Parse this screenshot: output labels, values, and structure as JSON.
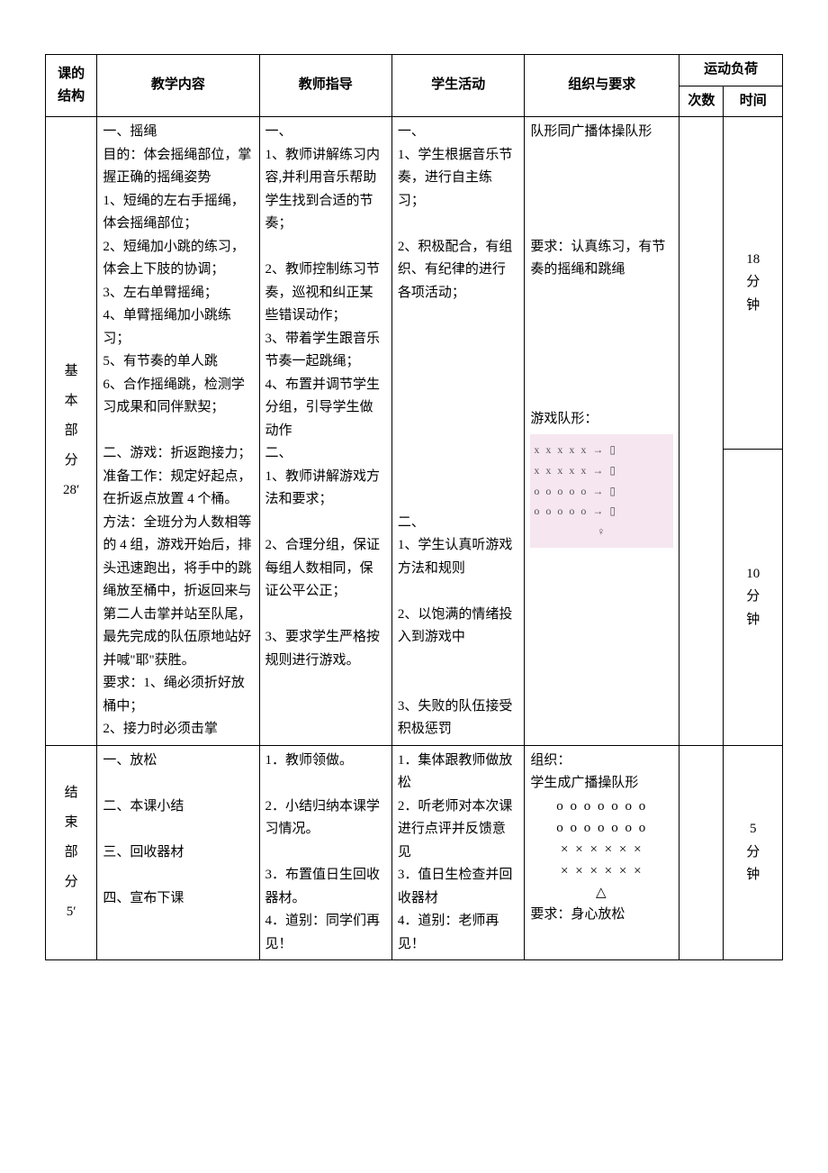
{
  "header": {
    "col1": "课的\n结构",
    "col2": "教学内容",
    "col3": "教师指导",
    "col4": "学生活动",
    "col5": "组织与要求",
    "col6": "运动负荷",
    "col6a": "次数",
    "col6b": "时间"
  },
  "row1": {
    "structure": "基\n本\n部\n分\n28′",
    "content": "一、摇绳\n目的：体会摇绳部位，掌握正确的摇绳姿势\n1、短绳的左右手摇绳，体会摇绳部位；\n2、短绳加小跳的练习，体会上下肢的协调；\n3、左右单臂摇绳；\n4、单臂摇绳加小跳练习；\n5、有节奏的单人跳\n6、合作摇绳跳，检测学习成果和同伴默契；\n\n二、游戏：折返跑接力；\n准备工作：规定好起点，在折返点放置 4 个桶。\n方法：全班分为人数相等的 4 组，游戏开始后，排头迅速跑出，将手中的跳绳放至桶中，折返回来与第二人击掌并站至队尾，最先完成的队伍原地站好并喊\"耶\"获胜。\n要求：1、绳必须折好放桶中；\n2、接力时必须击掌",
    "teacher": "一、\n1、教师讲解练习内容,并利用音乐帮助学生找到合适的节奏；\n\n2、教师控制练习节奏，巡视和纠正某些错误动作；\n3、带着学生跟音乐节奏一起跳绳；\n4、布置并调节学生分组，引导学生做动作\n二、\n1、教师讲解游戏方法和要求；\n\n2、合理分组，保证每组人数相同，保证公平公正；\n\n3、要求学生严格按规则进行游戏。",
    "student": "一、\n1、学生根据音乐节奏，进行自主练习；\n\n2、积极配合，有组织、有纪律的进行各项活动；\n\n\n\n\n\n\n\n\n\n二、\n1、学生认真听游戏方法和规则\n\n2、以饱满的情绪投入到游戏中\n\n\n3、失败的队伍接受积极惩罚",
    "org_top": "队形同广播体操队形\n\n\n\n\n要求：认真练习，有节奏的摇绳和跳绳",
    "org_bottom_label": "游戏队形：",
    "diagram": {
      "rows": [
        "x x x x x  →        ▯",
        "x x x x x  →        ▯",
        "o o o o o →        ▯",
        "o o o o o →        ▯"
      ],
      "teacher_mark": "♀",
      "bg": "#f6e6f0",
      "text_color": "#555"
    },
    "time1": "18\n分\n钟",
    "time2": "10\n分\n钟"
  },
  "row2": {
    "structure": "结\n束\n部\n分\n5′",
    "content": "一、放松\n\n二、本课小结\n\n三、回收器材\n\n四、宣布下课",
    "teacher": "1．教师领做。\n\n2．小结归纳本课学习情况。\n\n3．布置值日生回收器材。\n4．道别：同学们再见！",
    "student": "1．集体跟教师做放松\n2．听老师对本次课进行点评并反馈意见\n3．值日生检查并回收器材\n4．道别：老师再见！",
    "org_label": "组织：\n学生成广播操队形",
    "formation": {
      "lines": [
        "o o o o o o o",
        "o o o o o o o",
        "× × × × × ×",
        "× × × × × ×",
        "△"
      ]
    },
    "org_req": "要求：身心放松",
    "time": "5\n分\n钟"
  },
  "layout": {
    "col_widths_pct": [
      7,
      22,
      18,
      18,
      21,
      6,
      8
    ]
  }
}
